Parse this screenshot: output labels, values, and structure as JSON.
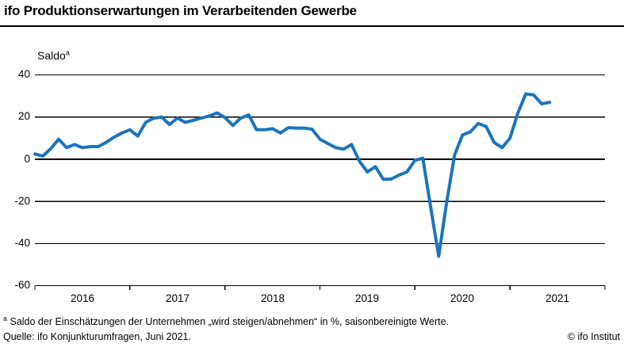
{
  "header": {
    "title": "ifo Produktionserwartungen im Verarbeitenden Gewerbe"
  },
  "chart_data": {
    "type": "line",
    "title": "ifo Produktionserwartungen im Verarbeitenden Gewerbe",
    "series_name": "Produktionserwartungen (Saldo)",
    "unit_label": "Saldo",
    "unit_label_sup": "a",
    "frequency": "monthly",
    "x": [
      "2016-01",
      "2016-02",
      "2016-03",
      "2016-04",
      "2016-05",
      "2016-06",
      "2016-07",
      "2016-08",
      "2016-09",
      "2016-10",
      "2016-11",
      "2016-12",
      "2017-01",
      "2017-02",
      "2017-03",
      "2017-04",
      "2017-05",
      "2017-06",
      "2017-07",
      "2017-08",
      "2017-09",
      "2017-10",
      "2017-11",
      "2017-12",
      "2018-01",
      "2018-02",
      "2018-03",
      "2018-04",
      "2018-05",
      "2018-06",
      "2018-07",
      "2018-08",
      "2018-09",
      "2018-10",
      "2018-11",
      "2018-12",
      "2019-01",
      "2019-02",
      "2019-03",
      "2019-04",
      "2019-05",
      "2019-06",
      "2019-07",
      "2019-08",
      "2019-09",
      "2019-10",
      "2019-11",
      "2019-12",
      "2020-01",
      "2020-02",
      "2020-03",
      "2020-04",
      "2020-05",
      "2020-06",
      "2020-07",
      "2020-08",
      "2020-09",
      "2020-10",
      "2020-11",
      "2020-12",
      "2021-01",
      "2021-02",
      "2021-03",
      "2021-04",
      "2021-05",
      "2021-06"
    ],
    "values": [
      2.5,
      1.5,
      5,
      9.5,
      5.5,
      7,
      5.5,
      6,
      6,
      8,
      10.5,
      12.5,
      14,
      11,
      17.5,
      19.5,
      20,
      16.5,
      19.5,
      17.5,
      18.5,
      19.5,
      20.5,
      22,
      19.8,
      16,
      19.5,
      21,
      14,
      14,
      14.5,
      12.5,
      15,
      14.8,
      14.8,
      14.3,
      9.5,
      7.5,
      5.5,
      4.8,
      7,
      -1,
      -6,
      -3.5,
      -9.5,
      -9.4,
      -7.5,
      -6,
      -0.5,
      0.5,
      -23,
      -46,
      -20.5,
      2,
      11.5,
      13,
      17,
      15.5,
      8,
      5.5,
      10,
      22,
      31,
      30.5,
      26.3,
      27
    ],
    "ylim": [
      -60,
      40
    ],
    "yticks": [
      40,
      20,
      0,
      -20,
      -40,
      -60
    ],
    "ytick_labels": [
      "40",
      "20",
      "0",
      "-20",
      "-40",
      "-60"
    ],
    "x_tick_labels": [
      "2016",
      "2017",
      "2018",
      "2019",
      "2020",
      "2021"
    ],
    "grid": "horizontal",
    "legend": "none",
    "line_color": "#1b74bc",
    "axis_color": "#000000"
  },
  "footer": {
    "footnote_sup": "a",
    "footnote": " Saldo der Einschätzungen der Unternehmen „wird steigen/abnehmen“ in %, saisonbereinigte Werte.",
    "source": "Quelle: ifo Konjunkturumfragen, Juni 2021.",
    "copyright": "© ifo Institut"
  }
}
